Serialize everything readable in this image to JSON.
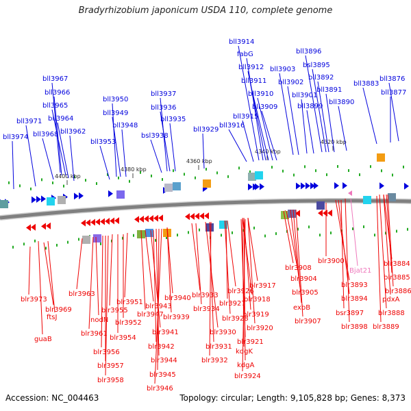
{
  "title": "Bradyrhizobium japonicum USDA 110, complete genome",
  "footer": {
    "accession": "Accession: NC_004463",
    "summary": "Topology: circular; Length: 9,105,828 bp; Genes: 8,373"
  },
  "colors": {
    "forward": "#0000dd",
    "reverse": "#ee0000",
    "rna": "#ee77bb",
    "backbone": "#808080",
    "marker": "#22aa22"
  },
  "ticks": [
    "4400 kbp",
    "4380 kbp",
    "4360 kbp",
    "4340 kbp",
    "4320 kbp"
  ],
  "top_labels": [
    "bll3974",
    "bll3971",
    "bll3968",
    "bll3967",
    "bll3966",
    "bll3965",
    "bll3964",
    "bll3962",
    "bll3953",
    "bll3950",
    "bll3949",
    "bll3948",
    "bsl3938",
    "bll3937",
    "bll3936",
    "bll3935",
    "bll3929",
    "bll3916",
    "bll3915",
    "bll3914",
    "fabG",
    "bll3912",
    "bll3911",
    "bll3910",
    "bll3909",
    "bll3903",
    "bll3902",
    "bll3901",
    "bll3899",
    "bll3896",
    "bsl3895",
    "bll3892",
    "bll3891",
    "bll3890",
    "bll3883",
    "bll3877",
    "bll3876"
  ],
  "bottom_labels": [
    "blr3973",
    "blr3969",
    "ftsJ",
    "guaB",
    "blr3963",
    "nodN",
    "blr3961",
    "blr3956",
    "blr3957",
    "blr3958",
    "blr3955",
    "blr3954",
    "blr3952",
    "blr3951",
    "blr3947",
    "blr3943",
    "blr3941",
    "blr3942",
    "blr3944",
    "blr3945",
    "blr3946",
    "blr3940",
    "blr3939",
    "blr3933",
    "blr3934",
    "blr3930",
    "blr3931",
    "blr3932",
    "blr3927",
    "blr3926",
    "blr3928",
    "blr3918",
    "blr3917",
    "blr3919",
    "blr3920",
    "blr3921",
    "kdgK",
    "kdgA",
    "blr3924",
    "blr3908",
    "blr3904",
    "blr3905",
    "exbB",
    "blr3907",
    "blr3900",
    "blr3893",
    "blr3894",
    "bsr3897",
    "blr3898",
    "Bjat21",
    "blr3884",
    "blr3885",
    "blr3886",
    "pdxA",
    "blr3888",
    "blr3889"
  ]
}
